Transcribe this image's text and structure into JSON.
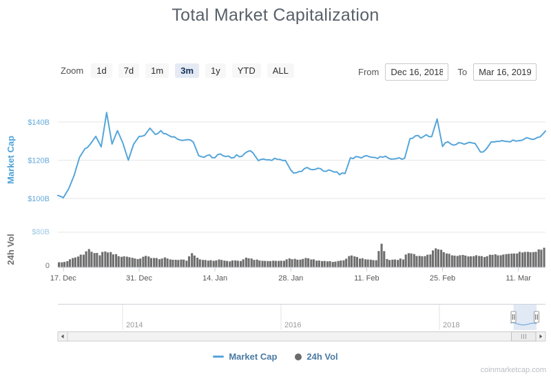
{
  "page": {
    "title": "Total Market Capitalization",
    "watermark": "coinmarketcap.com"
  },
  "toolbar": {
    "zoom_label": "Zoom",
    "zoom_buttons": [
      {
        "label": "1d",
        "selected": false
      },
      {
        "label": "7d",
        "selected": false
      },
      {
        "label": "1m",
        "selected": false
      },
      {
        "label": "3m",
        "selected": true
      },
      {
        "label": "1y",
        "selected": false
      },
      {
        "label": "YTD",
        "selected": false
      },
      {
        "label": "ALL",
        "selected": false
      }
    ],
    "from_label": "From",
    "from_value": "Dec 16, 2018",
    "to_label": "To",
    "to_value": "Mar 16, 2019"
  },
  "legend": {
    "items": [
      {
        "label": "Market Cap",
        "marker": "line",
        "color": "#55a5da"
      },
      {
        "label": "24h Vol",
        "marker": "circle",
        "color": "#6b6b6b"
      }
    ]
  },
  "navigator": {
    "tick_labels": [
      "2014",
      "2016",
      "2018"
    ],
    "selected_range": [
      "Dec 16, 2018",
      "Mar 16, 2019"
    ]
  },
  "chart_data": {
    "type": "line",
    "title": "Total Market Capitalization",
    "start_date": "Dec 16, 2018",
    "end_date": "Mar 16, 2019",
    "interval": "daily",
    "x_tick_labels": [
      "17. Dec",
      "31. Dec",
      "14. Jan",
      "28. Jan",
      "11. Feb",
      "25. Feb",
      "11. Mar"
    ],
    "x_tick_day_indices": [
      1,
      15,
      29,
      43,
      57,
      71,
      85
    ],
    "panels": [
      {
        "name": "market-cap",
        "ylabel": "Market Cap",
        "yticks": [
          "$100B",
          "$120B",
          "$140B"
        ],
        "ytick_values": [
          100,
          120,
          140
        ],
        "ylim": [
          92,
          148
        ],
        "grid": "horizontal",
        "label_color": "#63a9da",
        "title_color": "#4fa3d9"
      },
      {
        "name": "24h-vol",
        "ylabel": "24h Vol",
        "yticks": [
          "0",
          "$80B"
        ],
        "ytick_values": [
          0,
          80
        ],
        "ylim": [
          0,
          80
        ],
        "grid": "horizontal",
        "label_colors": [
          "#707070",
          "#9dc9e6"
        ],
        "title_color": "#6f6f6f"
      }
    ],
    "series": [
      {
        "name": "Market Cap",
        "type": "line",
        "unit": "USD billions",
        "color": "#55a5da",
        "values": [
          101.5,
          100.3,
          105.0,
          112.0,
          121.5,
          126.0,
          128.5,
          132.5,
          127.0,
          145.0,
          128.5,
          135.5,
          129.0,
          120.0,
          128.5,
          132.5,
          133.0,
          136.8,
          133.5,
          135.5,
          133.8,
          132.2,
          131.2,
          130.4,
          130.8,
          129.5,
          122.4,
          121.5,
          122.8,
          121.3,
          123.3,
          121.9,
          121.2,
          122.9,
          122.1,
          124.5,
          123.9,
          119.8,
          120.6,
          120.2,
          121.0,
          120.4,
          119.9,
          114.8,
          113.4,
          114.2,
          116.2,
          115.0,
          115.8,
          114.3,
          114.9,
          113.8,
          112.4,
          113.0,
          121.3,
          121.9,
          121.2,
          122.4,
          121.5,
          120.9,
          121.6,
          121.1,
          120.7,
          121.3,
          121.0,
          131.3,
          132.8,
          131.6,
          133.4,
          132.4,
          141.6,
          127.2,
          129.7,
          127.9,
          129.2,
          128.4,
          129.4,
          128.8,
          124.3,
          125.6,
          129.6,
          129.9,
          130.3,
          129.8,
          130.6,
          130.2,
          130.9,
          131.4,
          131.1,
          132.2,
          135.3
        ]
      },
      {
        "name": "24h Vol",
        "type": "column",
        "unit": "USD billions",
        "color": "#6e6e6e",
        "values": [
          12,
          11,
          15,
          21,
          25,
          29,
          41,
          34,
          28,
          36,
          33,
          29,
          25,
          23,
          21,
          19,
          23,
          25,
          21,
          19,
          22,
          18,
          17,
          18,
          16,
          33,
          22,
          18,
          16,
          15,
          17,
          15,
          14,
          16,
          15,
          22,
          19,
          17,
          15,
          14,
          15,
          14,
          15,
          21,
          19,
          17,
          22,
          18,
          16,
          15,
          14,
          13,
          14,
          16,
          26,
          24,
          20,
          19,
          18,
          17,
          56,
          20,
          17,
          18,
          19,
          34,
          30,
          27,
          26,
          30,
          44,
          40,
          33,
          29,
          27,
          28,
          26,
          25,
          27,
          25,
          28,
          30,
          29,
          31,
          33,
          32,
          34,
          36,
          35,
          39,
          43
        ]
      }
    ],
    "legend_entries": [
      "Market Cap",
      "24h Vol"
    ],
    "legend_position": "bottom-center",
    "grid": "horizontal-only"
  }
}
